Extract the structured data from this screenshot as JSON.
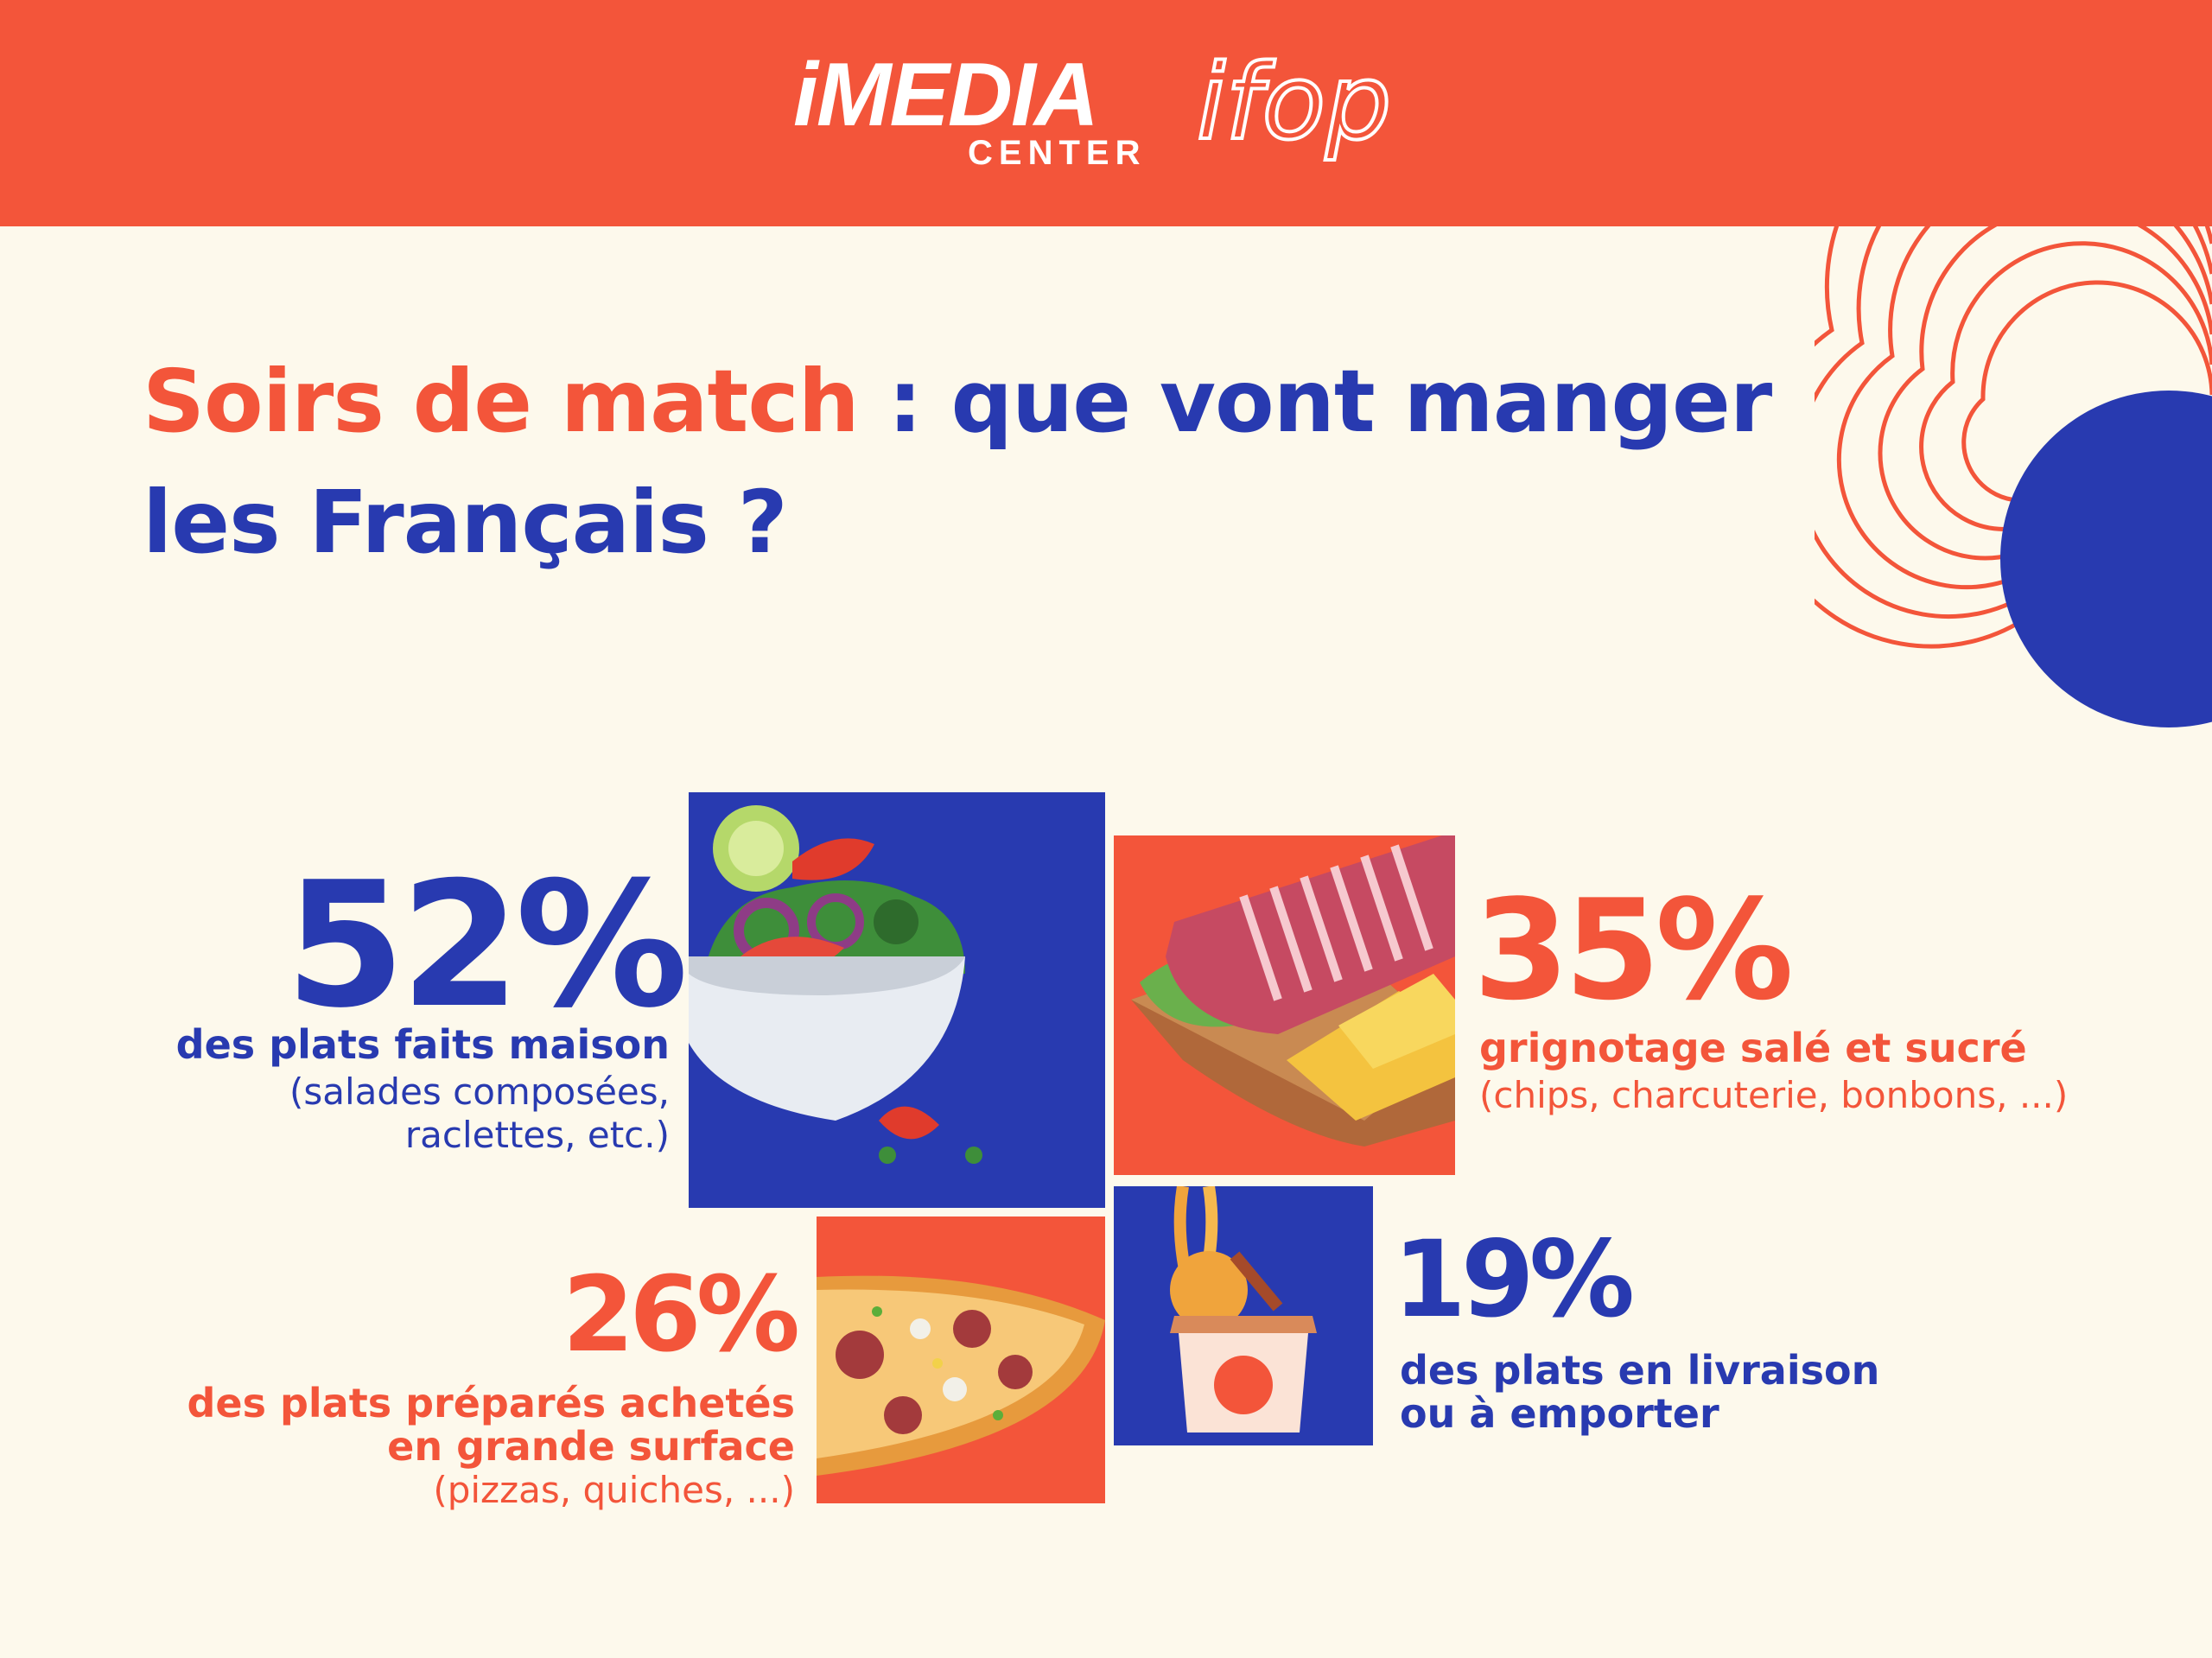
{
  "header": {
    "logo_media_word": "iMEDIA",
    "logo_center_word": "CENTER",
    "logo_ifop": "ifop"
  },
  "title": {
    "accent": "Soirs de match",
    "rest_line1": " : que vont manger",
    "line2": "les Français ?"
  },
  "stats": [
    {
      "value": "52%",
      "label": "des plats faits maison",
      "sub_line1": "(salades composées,",
      "sub_line2": "raclettes, etc.)",
      "icon": "salad-bowl-icon"
    },
    {
      "value": "35%",
      "label": "grignotage salé et sucré",
      "sub_line1": "(chips, charcuterie, bonbons, ...)",
      "icon": "charcuterie-board-icon"
    },
    {
      "value": "26%",
      "label_line1": "des plats préparés achetés",
      "label_line2": "en grande surface",
      "sub_line1": "(pizzas, quiches, ...)",
      "icon": "pizza-icon"
    },
    {
      "value": "19%",
      "label_line1": "des plats en livraison",
      "label_line2": "ou à emporter",
      "icon": "takeaway-box-icon"
    }
  ],
  "chart_data": {
    "type": "bar",
    "categories": [
      "des plats faits maison",
      "grignotage salé et sucré",
      "des plats préparés achetés en grande surface",
      "des plats en livraison ou à emporter"
    ],
    "values": [
      52,
      35,
      26,
      19
    ]
  },
  "colors": {
    "orange": "#F3553A",
    "blue": "#283AB0",
    "background": "#FDF9EC"
  }
}
